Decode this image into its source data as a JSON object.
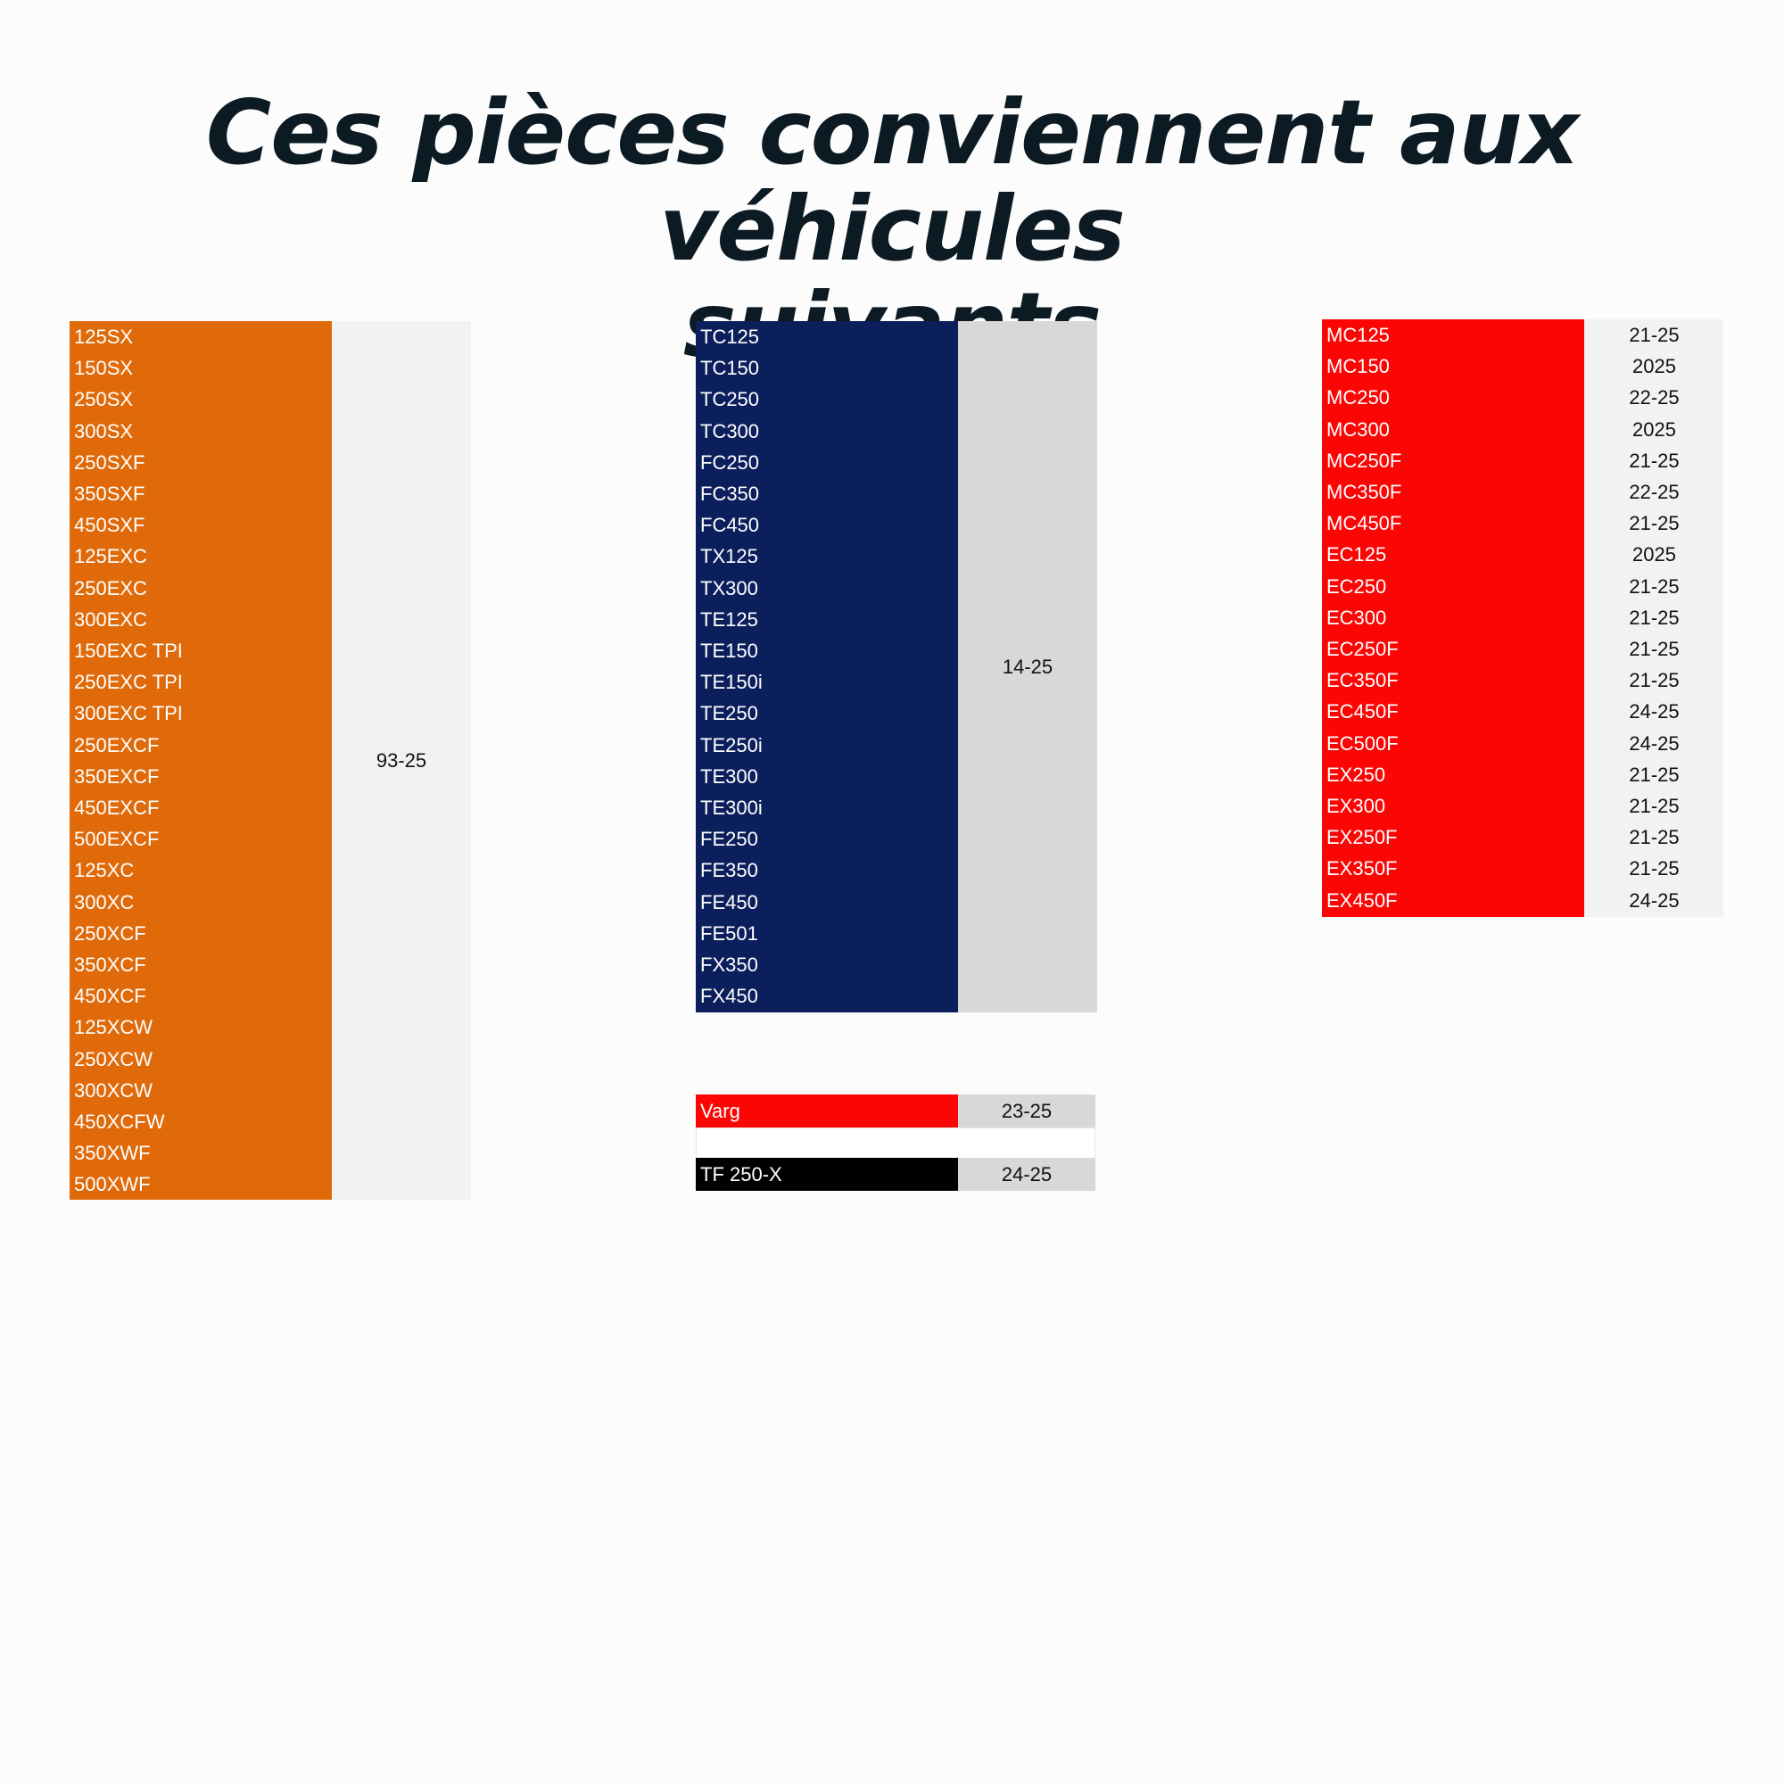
{
  "title_line1": "Ces pièces conviennent aux véhicules",
  "title_line2": "suivants",
  "tables": {
    "ktm": {
      "color": "#e06a0a",
      "years": "93-25",
      "models": [
        "125SX",
        "150SX",
        "250SX",
        "300SX",
        "250SXF",
        "350SXF",
        "450SXF",
        "125EXC",
        "250EXC",
        "300EXC",
        "150EXC TPI",
        "250EXC TPI",
        "300EXC TPI",
        "250EXCF",
        "350EXCF",
        "450EXCF",
        "500EXCF",
        "125XC",
        "300XC",
        "250XCF",
        "350XCF",
        "450XCF",
        "125XCW",
        "250XCW",
        "300XCW",
        "450XCFW",
        "350XWF",
        "500XWF"
      ]
    },
    "husqvarna": {
      "color": "#0b1f5c",
      "years": "14-25",
      "models": [
        "TC125",
        "TC150",
        "TC250",
        "TC300",
        "FC250",
        "FC350",
        "FC450",
        "TX125",
        "TX300",
        "TE125",
        "TE150",
        "TE150i",
        "TE250",
        "TE250i",
        "TE300",
        "TE300i",
        "FE250",
        "FE350",
        "FE450",
        "FE501",
        "FX350",
        "FX450"
      ]
    },
    "gasgas": {
      "color": "#fb0505",
      "rows": [
        {
          "model": "MC125",
          "years": "21-25"
        },
        {
          "model": "MC150",
          "years": "2025"
        },
        {
          "model": "MC250",
          "years": "22-25"
        },
        {
          "model": "MC300",
          "years": "2025"
        },
        {
          "model": "MC250F",
          "years": "21-25"
        },
        {
          "model": "MC350F",
          "years": "22-25"
        },
        {
          "model": "MC450F",
          "years": "21-25"
        },
        {
          "model": "EC125",
          "years": "2025"
        },
        {
          "model": "EC250",
          "years": "21-25"
        },
        {
          "model": "EC300",
          "years": "21-25"
        },
        {
          "model": "EC250F",
          "years": "21-25"
        },
        {
          "model": "EC350F",
          "years": "21-25"
        },
        {
          "model": "EC450F",
          "years": "24-25"
        },
        {
          "model": "EC500F",
          "years": "24-25"
        },
        {
          "model": "EX250",
          "years": "21-25"
        },
        {
          "model": "EX300",
          "years": "21-25"
        },
        {
          "model": "EX250F",
          "years": "21-25"
        },
        {
          "model": "EX350F",
          "years": "21-25"
        },
        {
          "model": "EX450F",
          "years": "24-25"
        }
      ]
    },
    "extra": {
      "varg": {
        "model": "Varg",
        "years": "23-25",
        "color": "#fb0505"
      },
      "tf": {
        "model": "TF 250-X",
        "years": "24-25",
        "color": "#000000"
      }
    }
  }
}
